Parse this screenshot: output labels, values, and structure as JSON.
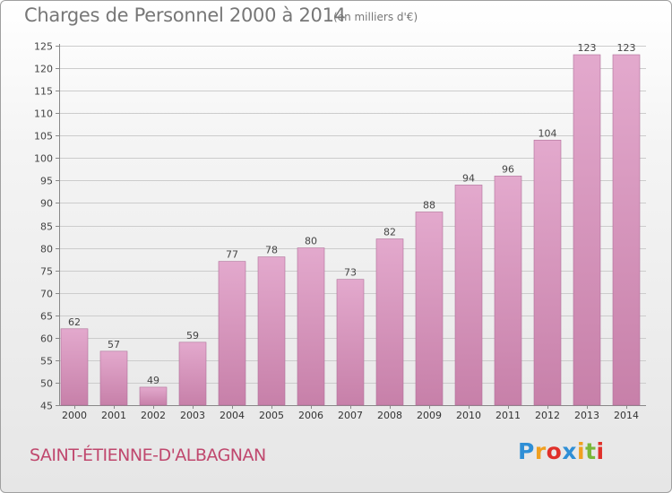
{
  "header": {
    "title": "Charges de Personnel 2000 à 2014",
    "subtitle": "(en milliers d'€)"
  },
  "footer": {
    "city": "SAINT-ÉTIENNE-D'ALBAGNAN",
    "logo_text": "Proxiti",
    "logo_letters": [
      {
        "ch": "P",
        "color": "#2f8fd6"
      },
      {
        "ch": "r",
        "color": "#f0a020"
      },
      {
        "ch": "o",
        "color": "#e0302a"
      },
      {
        "ch": "x",
        "color": "#2f8fd6"
      },
      {
        "ch": "i",
        "color": "#f0a020"
      },
      {
        "ch": "t",
        "color": "#7ab83a"
      },
      {
        "ch": "i",
        "color": "#e0302a"
      }
    ]
  },
  "colors": {
    "bar_fill_top": "#e3a9cd",
    "bar_fill_bottom": "#c780a9",
    "bar_stroke": "#b07099",
    "gridline": "#cccccc",
    "city": "#c0486e"
  },
  "chart_data": {
    "type": "bar",
    "title": "Charges de Personnel 2000 à 2014",
    "subtitle": "(en milliers d'€)",
    "categories": [
      "2000",
      "2001",
      "2002",
      "2003",
      "2004",
      "2005",
      "2006",
      "2007",
      "2008",
      "2009",
      "2010",
      "2011",
      "2012",
      "2013",
      "2014"
    ],
    "values": [
      62,
      57,
      49,
      59,
      77,
      78,
      80,
      73,
      82,
      88,
      94,
      96,
      104,
      123,
      123
    ],
    "ylim": [
      45,
      125
    ],
    "yticks": [
      45,
      50,
      55,
      60,
      65,
      70,
      75,
      80,
      85,
      90,
      95,
      100,
      105,
      110,
      115,
      120,
      125
    ],
    "grid": true,
    "data_labels": true
  }
}
